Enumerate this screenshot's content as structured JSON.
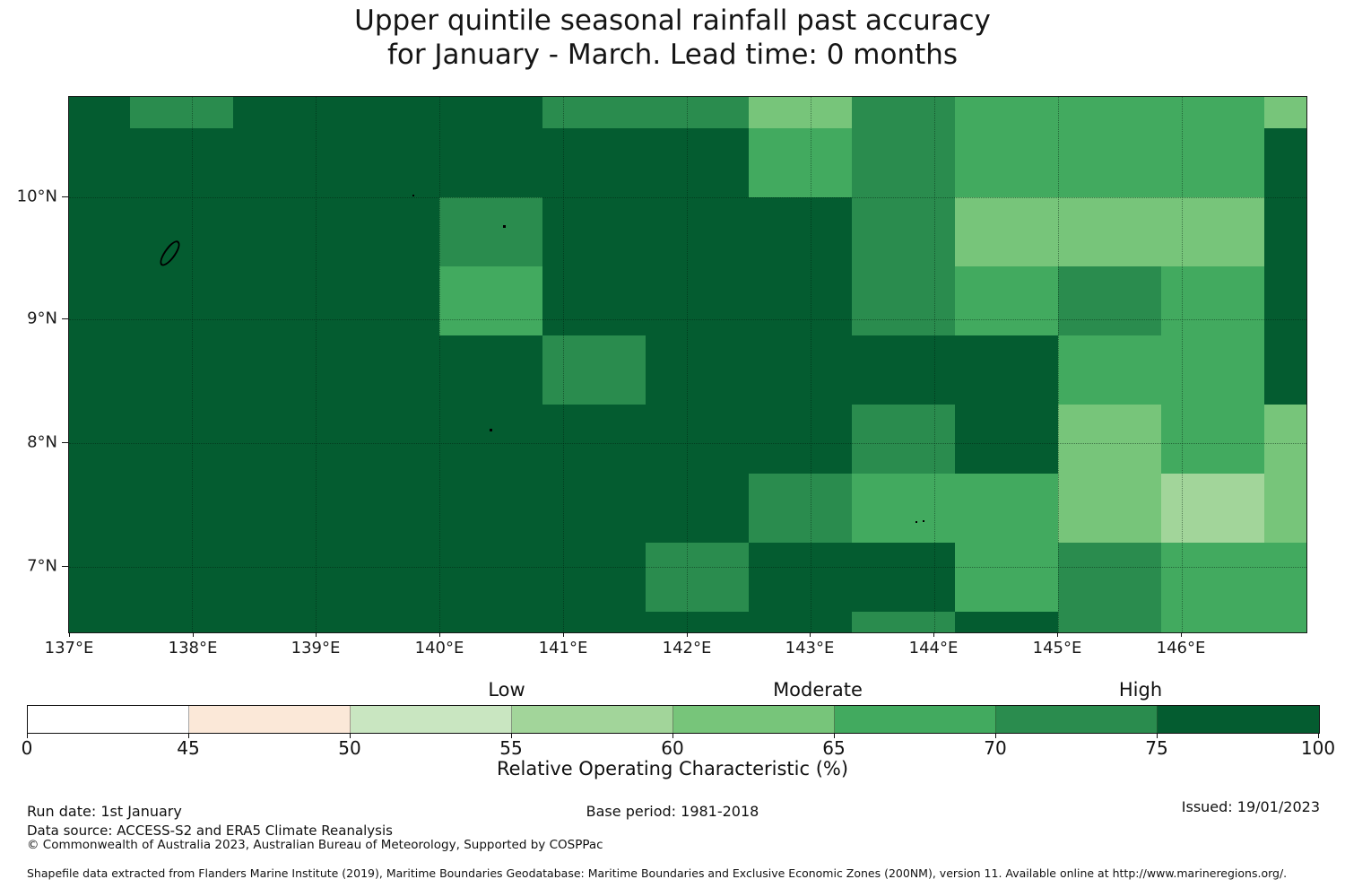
{
  "title": {
    "line1": "Upper quintile seasonal rainfall past accuracy",
    "line2": "for January - March. Lead time: 0 months"
  },
  "chart_data": {
    "type": "heatmap",
    "title": "Upper quintile seasonal rainfall past accuracy for January - March. Lead time: 0 months",
    "x_axis": {
      "tick_labels": [
        "137°E",
        "138°E",
        "139°E",
        "140°E",
        "141°E",
        "142°E",
        "143°E",
        "144°E",
        "145°E",
        "146°E"
      ],
      "range_deg": [
        137.0,
        147.0
      ]
    },
    "y_axis": {
      "tick_labels": [
        "10°N",
        "9°N",
        "8°N",
        "7°N"
      ],
      "range_deg": [
        6.5,
        10.8
      ]
    },
    "legend_bands": [
      "Low",
      "Moderate",
      "High"
    ],
    "colorbar": {
      "axis_label": "Relative Operating Characteristic (%)",
      "tick_labels": [
        "0",
        "45",
        "50",
        "55",
        "60",
        "65",
        "70",
        "75",
        "100"
      ],
      "segments": [
        {
          "range": "0-45",
          "color": "#ffffff"
        },
        {
          "range": "45-50",
          "color": "#fbe8d8"
        },
        {
          "range": "50-55",
          "color": "#c9e6c1"
        },
        {
          "range": "55-60",
          "color": "#a2d59a"
        },
        {
          "range": "60-65",
          "color": "#77c57a"
        },
        {
          "range": "65-70",
          "color": "#42aa5f"
        },
        {
          "range": "70-75",
          "color": "#2a8c4e"
        },
        {
          "range": "75-100",
          "color": "#045c30"
        }
      ]
    },
    "cell_colors": {
      "75-100": "#045c30",
      "70-75": "#2a8c4e",
      "65-70": "#42aa5f",
      "60-65": "#77c57a",
      "55-60": "#a2d59a"
    },
    "grid": {
      "columns": 13,
      "rows": 9,
      "lon_edges_deg": [
        137.0,
        137.5,
        138.33,
        139.17,
        140.0,
        140.83,
        141.67,
        142.5,
        143.33,
        144.17,
        145.0,
        145.83,
        146.67,
        147.0
      ],
      "lat_edges_deg": [
        10.81,
        10.56,
        10.0,
        9.44,
        8.88,
        8.33,
        7.77,
        7.21,
        6.65,
        6.49
      ],
      "values_roc_band": [
        [
          "75-100",
          "70-75",
          "75-100",
          "75-100",
          "75-100",
          "70-75",
          "70-75",
          "60-65",
          "70-75",
          "65-70",
          "65-70",
          "65-70",
          "60-65"
        ],
        [
          "75-100",
          "75-100",
          "75-100",
          "75-100",
          "75-100",
          "75-100",
          "75-100",
          "65-70",
          "70-75",
          "65-70",
          "65-70",
          "65-70",
          "75-100"
        ],
        [
          "75-100",
          "75-100",
          "75-100",
          "75-100",
          "70-75",
          "75-100",
          "75-100",
          "75-100",
          "70-75",
          "60-65",
          "60-65",
          "60-65",
          "75-100"
        ],
        [
          "75-100",
          "75-100",
          "75-100",
          "75-100",
          "65-70",
          "75-100",
          "75-100",
          "75-100",
          "70-75",
          "65-70",
          "70-75",
          "65-70",
          "75-100"
        ],
        [
          "75-100",
          "75-100",
          "75-100",
          "75-100",
          "75-100",
          "70-75",
          "75-100",
          "75-100",
          "75-100",
          "75-100",
          "65-70",
          "65-70",
          "75-100"
        ],
        [
          "75-100",
          "75-100",
          "75-100",
          "75-100",
          "75-100",
          "75-100",
          "75-100",
          "75-100",
          "70-75",
          "75-100",
          "60-65",
          "65-70",
          "60-65"
        ],
        [
          "75-100",
          "75-100",
          "75-100",
          "75-100",
          "75-100",
          "75-100",
          "75-100",
          "70-75",
          "65-70",
          "65-70",
          "60-65",
          "55-60",
          "60-65"
        ],
        [
          "75-100",
          "75-100",
          "75-100",
          "75-100",
          "75-100",
          "75-100",
          "70-75",
          "75-100",
          "75-100",
          "65-70",
          "70-75",
          "65-70",
          "65-70"
        ],
        [
          "75-100",
          "75-100",
          "75-100",
          "75-100",
          "75-100",
          "75-100",
          "75-100",
          "75-100",
          "70-75",
          "75-100",
          "70-75",
          "65-70",
          "65-70"
        ]
      ]
    }
  },
  "footer": {
    "run_date": "Run date: 1st January",
    "base_period": "Base period: 1981-2018",
    "issued": "Issued: 19/01/2023",
    "data_source": "Data source: ACCESS-S2 and ERA5 Climate Reanalysis",
    "copyright": "© Commonwealth of Australia 2023, Australian Bureau of Meteorology, Supported by COSPPac",
    "shapefile": "Shapefile data extracted from Flanders Marine Institute (2019), Maritime Boundaries Geodatabase: Maritime Boundaries and Exclusive Economic Zones (200NM), version 11. Available online at http://www.marineregions.org/."
  }
}
